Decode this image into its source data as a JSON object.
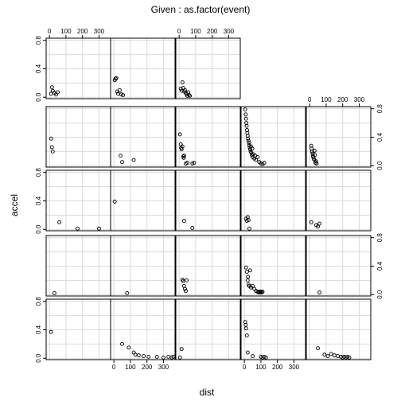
{
  "chart_data": {
    "type": "scatter",
    "title": "Given : as.factor(event)",
    "xlabel": "dist",
    "ylabel": "accel",
    "xlim": [
      -20,
      370
    ],
    "ylim": [
      -0.02,
      0.83
    ],
    "x_ticks": [
      0,
      100,
      200,
      300
    ],
    "y_ticks": [
      0.0,
      0.4,
      0.8
    ],
    "y_tick_labels": [
      "0.0",
      "0.4",
      "0.8"
    ],
    "grid": true,
    "layout": {
      "rows": 5,
      "cols": 5
    },
    "panels": [
      {
        "row": 1,
        "col": 1,
        "points": [
          [
            10,
            0.05
          ],
          [
            15,
            0.14
          ],
          [
            20,
            0.09
          ],
          [
            30,
            0.06
          ],
          [
            40,
            0.04
          ],
          [
            50,
            0.07
          ]
        ]
      },
      {
        "row": 1,
        "col": 2,
        "points": [
          [
            5,
            0.24
          ],
          [
            10,
            0.26
          ],
          [
            15,
            0.27
          ],
          [
            20,
            0.08
          ],
          [
            25,
            0.05
          ],
          [
            35,
            0.1
          ],
          [
            45,
            0.04
          ],
          [
            55,
            0.03
          ]
        ]
      },
      {
        "row": 1,
        "col": 3,
        "points": [
          [
            10,
            0.12
          ],
          [
            15,
            0.09
          ],
          [
            20,
            0.21
          ],
          [
            25,
            0.13
          ],
          [
            30,
            0.08
          ],
          [
            35,
            0.1
          ],
          [
            40,
            0.06
          ],
          [
            45,
            0.04
          ],
          [
            50,
            0.02
          ],
          [
            55,
            0.07
          ],
          [
            60,
            0.03
          ],
          [
            65,
            0.02
          ]
        ]
      },
      {
        "row": 2,
        "col": 1,
        "points": [
          [
            10,
            0.38
          ],
          [
            15,
            0.26
          ],
          [
            20,
            0.2
          ]
        ]
      },
      {
        "row": 2,
        "col": 2,
        "points": [
          [
            40,
            0.14
          ],
          [
            50,
            0.05
          ],
          [
            120,
            0.08
          ]
        ]
      },
      {
        "row": 2,
        "col": 3,
        "points": [
          [
            5,
            0.44
          ],
          [
            10,
            0.3
          ],
          [
            12,
            0.25
          ],
          [
            15,
            0.23
          ],
          [
            20,
            0.27
          ],
          [
            25,
            0.13
          ],
          [
            28,
            0.11
          ],
          [
            30,
            0.14
          ],
          [
            40,
            0.03
          ],
          [
            50,
            0.04
          ],
          [
            80,
            0.03
          ],
          [
            90,
            0.04
          ]
        ]
      },
      {
        "row": 2,
        "col": 4,
        "points": [
          [
            5,
            0.79
          ],
          [
            8,
            0.72
          ],
          [
            10,
            0.66
          ],
          [
            12,
            0.6
          ],
          [
            14,
            0.56
          ],
          [
            16,
            0.5
          ],
          [
            18,
            0.46
          ],
          [
            20,
            0.42
          ],
          [
            22,
            0.38
          ],
          [
            25,
            0.35
          ],
          [
            28,
            0.32
          ],
          [
            30,
            0.29
          ],
          [
            32,
            0.26
          ],
          [
            35,
            0.23
          ],
          [
            38,
            0.2
          ],
          [
            40,
            0.27
          ],
          [
            42,
            0.18
          ],
          [
            45,
            0.15
          ],
          [
            48,
            0.24
          ],
          [
            50,
            0.12
          ],
          [
            55,
            0.16
          ],
          [
            60,
            0.1
          ],
          [
            65,
            0.14
          ],
          [
            70,
            0.08
          ],
          [
            80,
            0.12
          ],
          [
            90,
            0.05
          ],
          [
            100,
            0.03
          ],
          [
            110,
            0.02
          ],
          [
            120,
            0.04
          ]
        ]
      },
      {
        "row": 2,
        "col": 5,
        "points": [
          [
            10,
            0.28
          ],
          [
            12,
            0.24
          ],
          [
            15,
            0.2
          ],
          [
            18,
            0.17
          ],
          [
            20,
            0.14
          ],
          [
            22,
            0.12
          ],
          [
            25,
            0.1
          ],
          [
            28,
            0.08
          ],
          [
            30,
            0.21
          ],
          [
            32,
            0.15
          ],
          [
            35,
            0.04
          ],
          [
            40,
            0.06
          ],
          [
            42,
            0.03
          ]
        ]
      },
      {
        "row": 3,
        "col": 1,
        "points": [
          [
            60,
            0.1
          ],
          [
            170,
            0.01
          ],
          [
            300,
            0.01
          ]
        ]
      },
      {
        "row": 3,
        "col": 2,
        "points": [
          [
            5,
            0.39
          ]
        ]
      },
      {
        "row": 3,
        "col": 3,
        "points": [
          [
            30,
            0.12
          ],
          [
            80,
            0.02
          ]
        ]
      },
      {
        "row": 3,
        "col": 4,
        "points": [
          [
            10,
            0.15
          ],
          [
            15,
            0.12
          ],
          [
            20,
            0.17
          ],
          [
            25,
            0.13
          ],
          [
            30,
            0.01
          ]
        ]
      },
      {
        "row": 3,
        "col": 5,
        "points": [
          [
            10,
            0.1
          ],
          [
            40,
            0.06
          ],
          [
            50,
            0.04
          ],
          [
            60,
            0.08
          ]
        ]
      },
      {
        "row": 4,
        "col": 1,
        "points": [
          [
            30,
            0.02
          ]
        ]
      },
      {
        "row": 4,
        "col": 2,
        "points": [
          [
            80,
            0.02
          ]
        ]
      },
      {
        "row": 4,
        "col": 3,
        "points": [
          [
            20,
            0.21
          ],
          [
            25,
            0.19
          ],
          [
            30,
            0.12
          ],
          [
            35,
            0.08
          ],
          [
            40,
            0.05
          ],
          [
            45,
            0.2
          ]
        ]
      },
      {
        "row": 4,
        "col": 4,
        "points": [
          [
            10,
            0.38
          ],
          [
            15,
            0.32
          ],
          [
            20,
            0.2
          ],
          [
            22,
            0.25
          ],
          [
            25,
            0.14
          ],
          [
            30,
            0.12
          ],
          [
            35,
            0.34
          ],
          [
            40,
            0.1
          ],
          [
            50,
            0.12
          ],
          [
            60,
            0.08
          ],
          [
            70,
            0.05
          ],
          [
            80,
            0.04
          ],
          [
            85,
            0.03
          ],
          [
            90,
            0.04
          ],
          [
            95,
            0.03
          ],
          [
            100,
            0.04
          ],
          [
            105,
            0.03
          ],
          [
            110,
            0.04
          ]
        ]
      },
      {
        "row": 4,
        "col": 5,
        "points": [
          [
            60,
            0.03
          ]
        ]
      },
      {
        "row": 5,
        "col": 1,
        "points": [
          [
            10,
            0.37
          ]
        ]
      },
      {
        "row": 5,
        "col": 2,
        "points": [
          [
            50,
            0.2
          ],
          [
            90,
            0.15
          ],
          [
            120,
            0.08
          ],
          [
            130,
            0.05
          ],
          [
            150,
            0.04
          ],
          [
            180,
            0.03
          ],
          [
            210,
            0.02
          ],
          [
            260,
            0.02
          ],
          [
            300,
            0.01
          ],
          [
            330,
            0.02
          ],
          [
            350,
            0.01
          ],
          [
            360,
            0.02
          ]
        ]
      },
      {
        "row": 5,
        "col": 3,
        "points": [
          [
            5,
            0.01
          ],
          [
            15,
            0.13
          ]
        ]
      },
      {
        "row": 5,
        "col": 4,
        "points": [
          [
            5,
            0.51
          ],
          [
            8,
            0.47
          ],
          [
            10,
            0.42
          ],
          [
            15,
            0.32
          ],
          [
            20,
            0.08
          ],
          [
            50,
            0.03
          ],
          [
            100,
            0.02
          ],
          [
            110,
            0.01
          ],
          [
            120,
            0.02
          ],
          [
            130,
            0.01
          ]
        ]
      },
      {
        "row": 5,
        "col": 5,
        "points": [
          [
            50,
            0.14
          ],
          [
            90,
            0.05
          ],
          [
            110,
            0.03
          ],
          [
            130,
            0.06
          ],
          [
            150,
            0.04
          ],
          [
            170,
            0.03
          ],
          [
            190,
            0.02
          ],
          [
            200,
            0.01
          ],
          [
            210,
            0.02
          ],
          [
            220,
            0.01
          ],
          [
            230,
            0.02
          ],
          [
            240,
            0.01
          ]
        ]
      }
    ]
  }
}
